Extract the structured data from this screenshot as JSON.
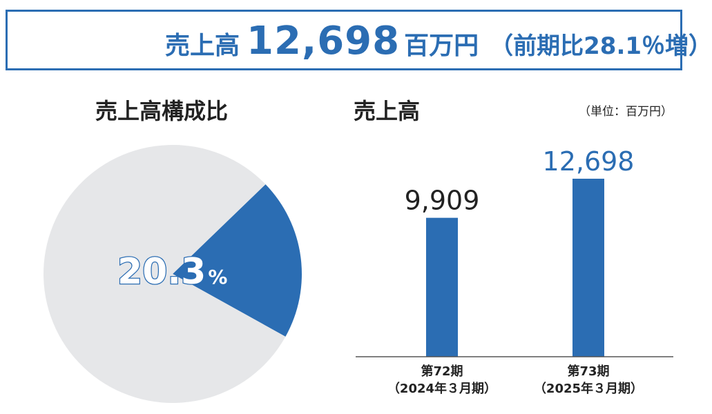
{
  "banner": {
    "label": "売上高",
    "value": "12,698",
    "unit": "百万円",
    "compare": "（前期比28.1％増）"
  },
  "left_title": "売上高構成比",
  "right_title": "売上高",
  "unit_note": "（単位：百万円）",
  "colors": {
    "accent": "#2b6db3",
    "pie_rest": "#e6e7e9",
    "axis": "#555555",
    "dark_text": "#222222"
  },
  "chart_data": [
    {
      "type": "pie",
      "title": "売上高構成比",
      "slices": [
        {
          "label": "",
          "value": 20.3,
          "color": "#2b6db3"
        },
        {
          "label": "",
          "value": 79.7,
          "color": "#e6e7e9"
        }
      ],
      "highlight_label": {
        "number": "20.3",
        "unit": "%"
      }
    },
    {
      "type": "bar",
      "title": "売上高",
      "unit": "百万円",
      "categories": [
        {
          "line1": "第72期",
          "line2": "（2024年３月期）"
        },
        {
          "line1": "第73期",
          "line2": "（2025年３月期）"
        }
      ],
      "values": [
        9909,
        12698
      ],
      "value_labels": [
        "9,909",
        "12,698"
      ],
      "value_label_colors": [
        "#222222",
        "#2b6db3"
      ],
      "ylim": [
        0,
        16000
      ],
      "grid": false
    }
  ]
}
